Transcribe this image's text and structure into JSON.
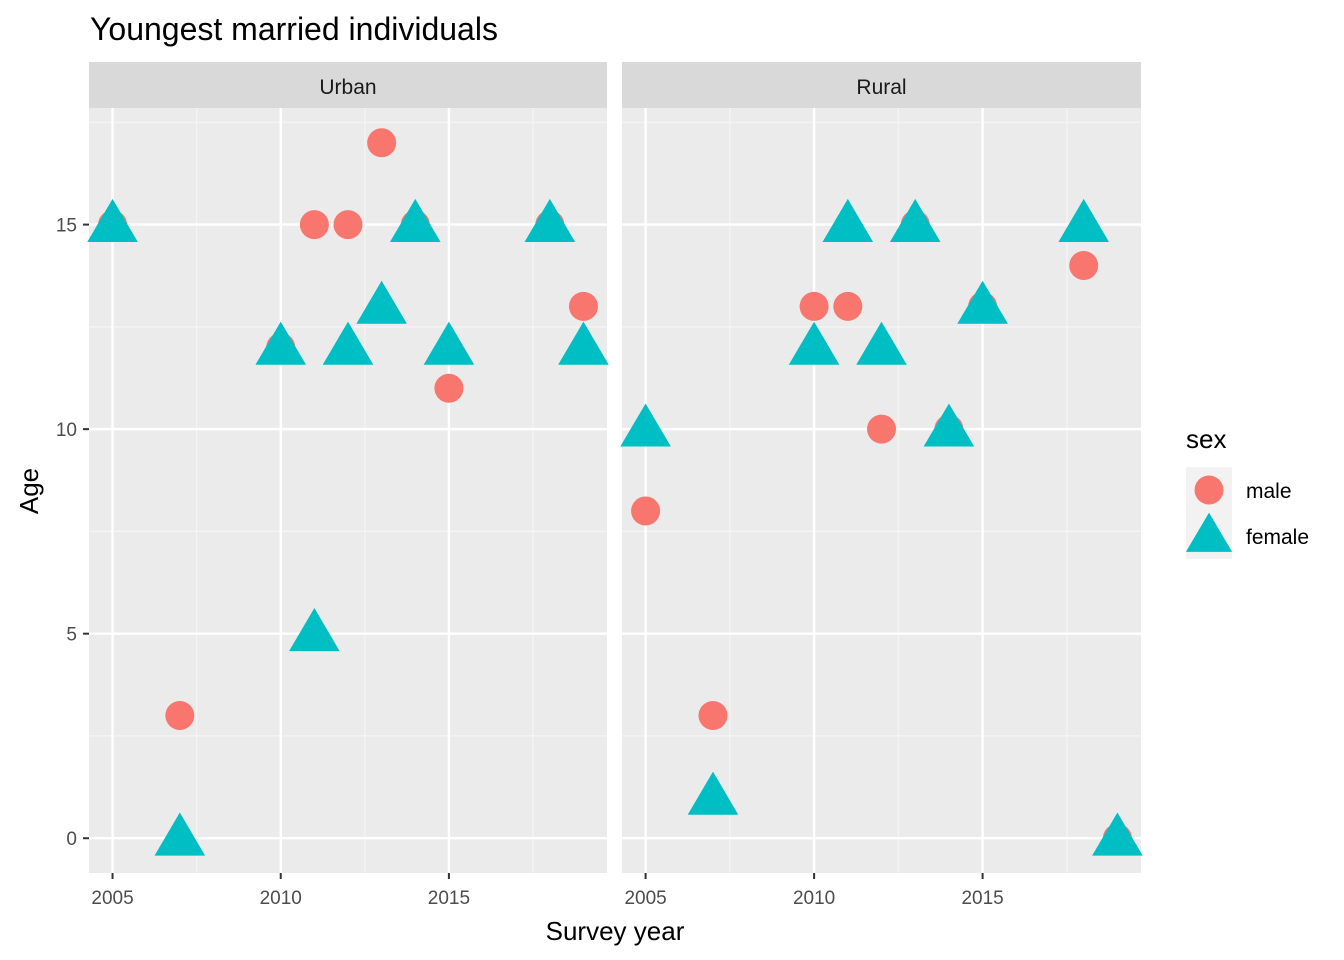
{
  "chart_data": {
    "type": "scatter",
    "title": "Youngest married individuals",
    "xlabel": "Survey year",
    "ylabel": "Age",
    "xlim": [
      2004.3,
      2019.7
    ],
    "ylim": [
      -0.85,
      17.85
    ],
    "x_ticks": [
      2005,
      2010,
      2015
    ],
    "y_ticks": [
      0,
      5,
      10,
      15
    ],
    "x_tick_labels": [
      "2005",
      "2010",
      "2015"
    ],
    "y_tick_labels": [
      "0",
      "5",
      "10",
      "15"
    ],
    "grid": true,
    "legend": {
      "title": "sex",
      "position": "right",
      "items": [
        {
          "label": "male",
          "shape": "circle",
          "color": "#F8766D"
        },
        {
          "label": "female",
          "shape": "triangle",
          "color": "#00BFC4"
        }
      ]
    },
    "panels": [
      {
        "name": "Urban",
        "series": [
          {
            "name": "male",
            "color": "#F8766D",
            "shape": "circle",
            "points": [
              [
                2005,
                15
              ],
              [
                2007,
                3
              ],
              [
                2010,
                12
              ],
              [
                2011,
                15
              ],
              [
                2012,
                15
              ],
              [
                2013,
                17
              ],
              [
                2014,
                15
              ],
              [
                2015,
                11
              ],
              [
                2018,
                15
              ],
              [
                2019,
                13
              ]
            ]
          },
          {
            "name": "female",
            "color": "#00BFC4",
            "shape": "triangle",
            "points": [
              [
                2005,
                15
              ],
              [
                2007,
                0
              ],
              [
                2010,
                12
              ],
              [
                2011,
                5
              ],
              [
                2012,
                12
              ],
              [
                2013,
                13
              ],
              [
                2014,
                15
              ],
              [
                2015,
                12
              ],
              [
                2018,
                15
              ],
              [
                2019,
                12
              ]
            ]
          }
        ]
      },
      {
        "name": "Rural",
        "series": [
          {
            "name": "male",
            "color": "#F8766D",
            "shape": "circle",
            "points": [
              [
                2005,
                8
              ],
              [
                2007,
                3
              ],
              [
                2010,
                13
              ],
              [
                2011,
                13
              ],
              [
                2012,
                10
              ],
              [
                2013,
                15
              ],
              [
                2014,
                10
              ],
              [
                2015,
                13
              ],
              [
                2018,
                14
              ],
              [
                2019,
                0
              ]
            ]
          },
          {
            "name": "female",
            "color": "#00BFC4",
            "shape": "triangle",
            "points": [
              [
                2005,
                10
              ],
              [
                2007,
                1
              ],
              [
                2010,
                12
              ],
              [
                2011,
                15
              ],
              [
                2012,
                12
              ],
              [
                2013,
                15
              ],
              [
                2014,
                10
              ],
              [
                2015,
                13
              ],
              [
                2018,
                15
              ],
              [
                2019,
                0
              ]
            ]
          }
        ]
      }
    ]
  }
}
